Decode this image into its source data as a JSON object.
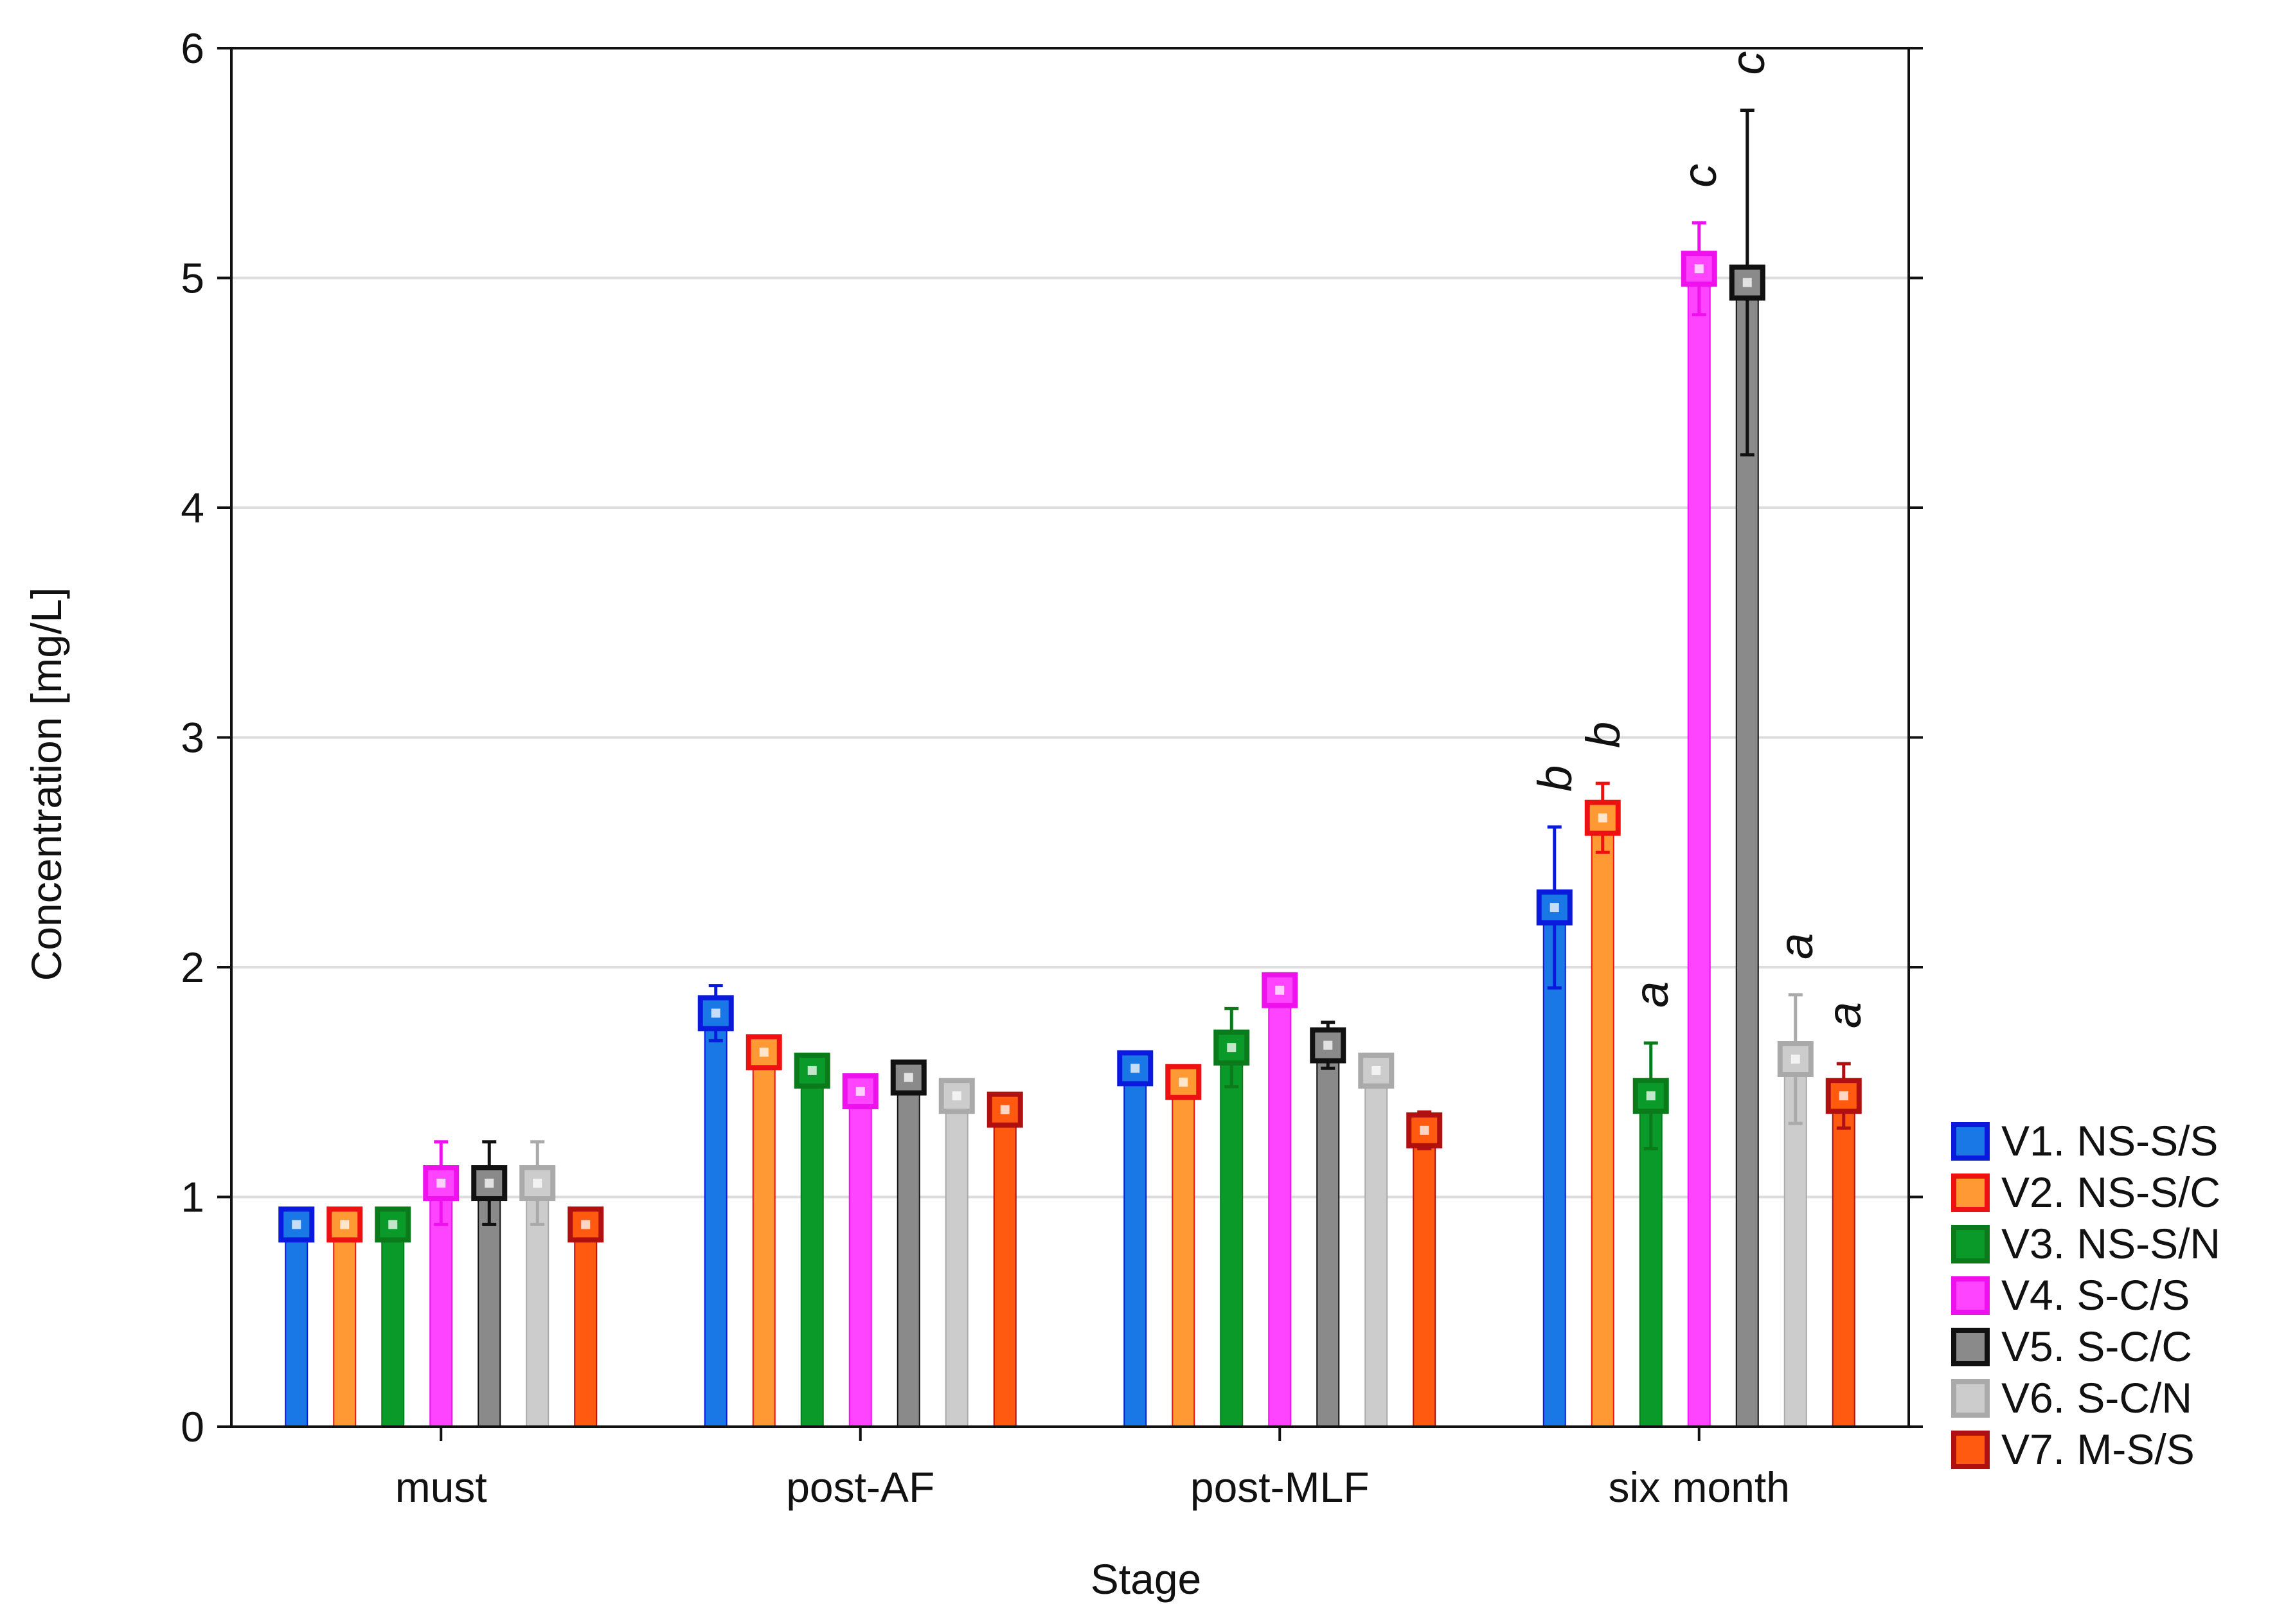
{
  "chart_data": {
    "type": "bar",
    "title": "",
    "xlabel": "Stage",
    "ylabel": "Concentration [mg/L]",
    "ylim": [
      0,
      6
    ],
    "yticks": [
      0,
      1,
      2,
      3,
      4,
      5,
      6
    ],
    "ytick_labels": [
      "0",
      "1",
      "2",
      "3",
      "4",
      "5",
      "6"
    ],
    "grid": true,
    "legend_position": "right-bottom",
    "categories": [
      "must",
      "post-AF",
      "post-MLF",
      "six month"
    ],
    "series": [
      {
        "name": "V1. NS-S/S",
        "color": "#1a78e6",
        "edge": "#0a1adc",
        "values": [
          0.88,
          1.8,
          1.56,
          2.26
        ],
        "errors": [
          0.06,
          0.12,
          0.05,
          0.35
        ]
      },
      {
        "name": "V2. NS-S/C",
        "color": "#ff9933",
        "edge": "#ee1111",
        "values": [
          0.88,
          1.63,
          1.5,
          2.65
        ],
        "errors": [
          0.05,
          0.04,
          0.04,
          0.15
        ]
      },
      {
        "name": "V3. NS-S/N",
        "color": "#0a9a2a",
        "edge": "#0a7a1a",
        "values": [
          0.88,
          1.55,
          1.65,
          1.44
        ],
        "errors": [
          0.05,
          0.05,
          0.17,
          0.23
        ]
      },
      {
        "name": "V4. S-C/S",
        "color": "#ff44ff",
        "edge": "#ee11ee",
        "values": [
          1.06,
          1.46,
          1.9,
          5.04
        ],
        "errors": [
          0.18,
          0.04,
          0.04,
          0.2
        ]
      },
      {
        "name": "V5. S-C/C",
        "color": "#8a8a8a",
        "edge": "#111111",
        "values": [
          1.06,
          1.52,
          1.66,
          4.98
        ],
        "errors": [
          0.18,
          0.03,
          0.1,
          0.75
        ]
      },
      {
        "name": "V6. S-C/N",
        "color": "#cccccc",
        "edge": "#aaaaaa",
        "values": [
          1.06,
          1.44,
          1.55,
          1.6
        ],
        "errors": [
          0.18,
          0.04,
          0.04,
          0.28
        ]
      },
      {
        "name": "V7. M-S/S",
        "color": "#ff5a10",
        "edge": "#b01010",
        "values": [
          0.88,
          1.38,
          1.29,
          1.44
        ],
        "errors": [
          0.05,
          0.07,
          0.08,
          0.14
        ]
      }
    ],
    "annotations": [
      {
        "category": "six month",
        "series": "V1. NS-S/S",
        "text": "b"
      },
      {
        "category": "six month",
        "series": "V2. NS-S/C",
        "text": "b"
      },
      {
        "category": "six month",
        "series": "V3. NS-S/N",
        "text": "a"
      },
      {
        "category": "six month",
        "series": "V4. S-C/S",
        "text": "c"
      },
      {
        "category": "six month",
        "series": "V5. S-C/C",
        "text": "c"
      },
      {
        "category": "six month",
        "series": "V6. S-C/N",
        "text": "a"
      },
      {
        "category": "six month",
        "series": "V7. M-S/S",
        "text": "a"
      }
    ]
  }
}
